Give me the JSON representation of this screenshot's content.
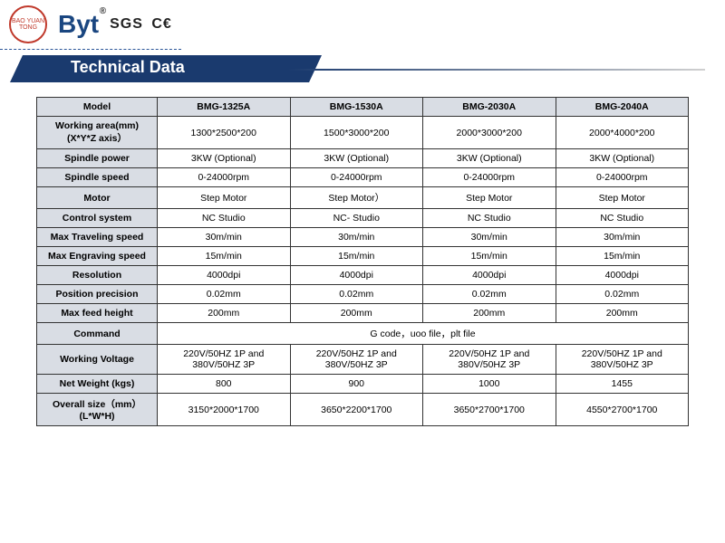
{
  "logos": {
    "circle_text": "BAO YUAN TONG",
    "byt": "Byt",
    "sgs": "SGS",
    "ce": "C€"
  },
  "banner": {
    "title": "Technical Data"
  },
  "table": {
    "header_label": "Model",
    "models": [
      "BMG-1325A",
      "BMG-1530A",
      "BMG-2030A",
      "BMG-2040A"
    ],
    "rows": [
      {
        "label": "Working area(mm) (X*Y*Z axis）",
        "v": [
          "1300*2500*200",
          "1500*3000*200",
          "2000*3000*200",
          "2000*4000*200"
        ]
      },
      {
        "label": "Spindle power",
        "v": [
          "3KW (Optional)",
          "3KW (Optional)",
          "3KW (Optional)",
          "3KW (Optional)"
        ]
      },
      {
        "label": "Spindle speed",
        "v": [
          "0-24000rpm",
          "0-24000rpm",
          "0-24000rpm",
          "0-24000rpm"
        ]
      },
      {
        "label": "Motor",
        "v": [
          "Step Motor",
          "Step Motor）",
          "Step Motor",
          "Step Motor"
        ]
      },
      {
        "label": "Control system",
        "v": [
          "NC Studio",
          "NC- Studio",
          "NC Studio",
          "NC Studio"
        ]
      },
      {
        "label": "Max Traveling speed",
        "v": [
          "30m/min",
          "30m/min",
          "30m/min",
          "30m/min"
        ]
      },
      {
        "label": "Max Engraving speed",
        "v": [
          "15m/min",
          "15m/min",
          "15m/min",
          "15m/min"
        ]
      },
      {
        "label": "Resolution",
        "v": [
          "4000dpi",
          "4000dpi",
          "4000dpi",
          "4000dpi"
        ]
      },
      {
        "label": "Position precision",
        "v": [
          "0.02mm",
          "0.02mm",
          "0.02mm",
          "0.02mm"
        ]
      },
      {
        "label": "Max feed height",
        "v": [
          "200mm",
          "200mm",
          "200mm",
          "200mm"
        ]
      }
    ],
    "command_row": {
      "label": "Command",
      "value": "G code，uoo file，plt file"
    },
    "rows_after": [
      {
        "label": "Working Voltage",
        "v": [
          "220V/50HZ 1P and 380V/50HZ 3P",
          "220V/50HZ 1P and 380V/50HZ 3P",
          "220V/50HZ 1P and 380V/50HZ 3P",
          "220V/50HZ 1P and 380V/50HZ 3P"
        ]
      },
      {
        "label": "Net Weight (kgs)",
        "v": [
          "800",
          "900",
          "1000",
          "1455"
        ]
      },
      {
        "label": "Overall size（mm）(L*W*H)",
        "v": [
          "3150*2000*1700",
          "3650*2200*1700",
          "3650*2700*1700",
          "4550*2700*1700"
        ]
      }
    ]
  },
  "style": {
    "banner_bg": "#1a3a6e",
    "header_bg": "#d9dde4",
    "border_color": "#333333",
    "text_color": "#000000"
  }
}
